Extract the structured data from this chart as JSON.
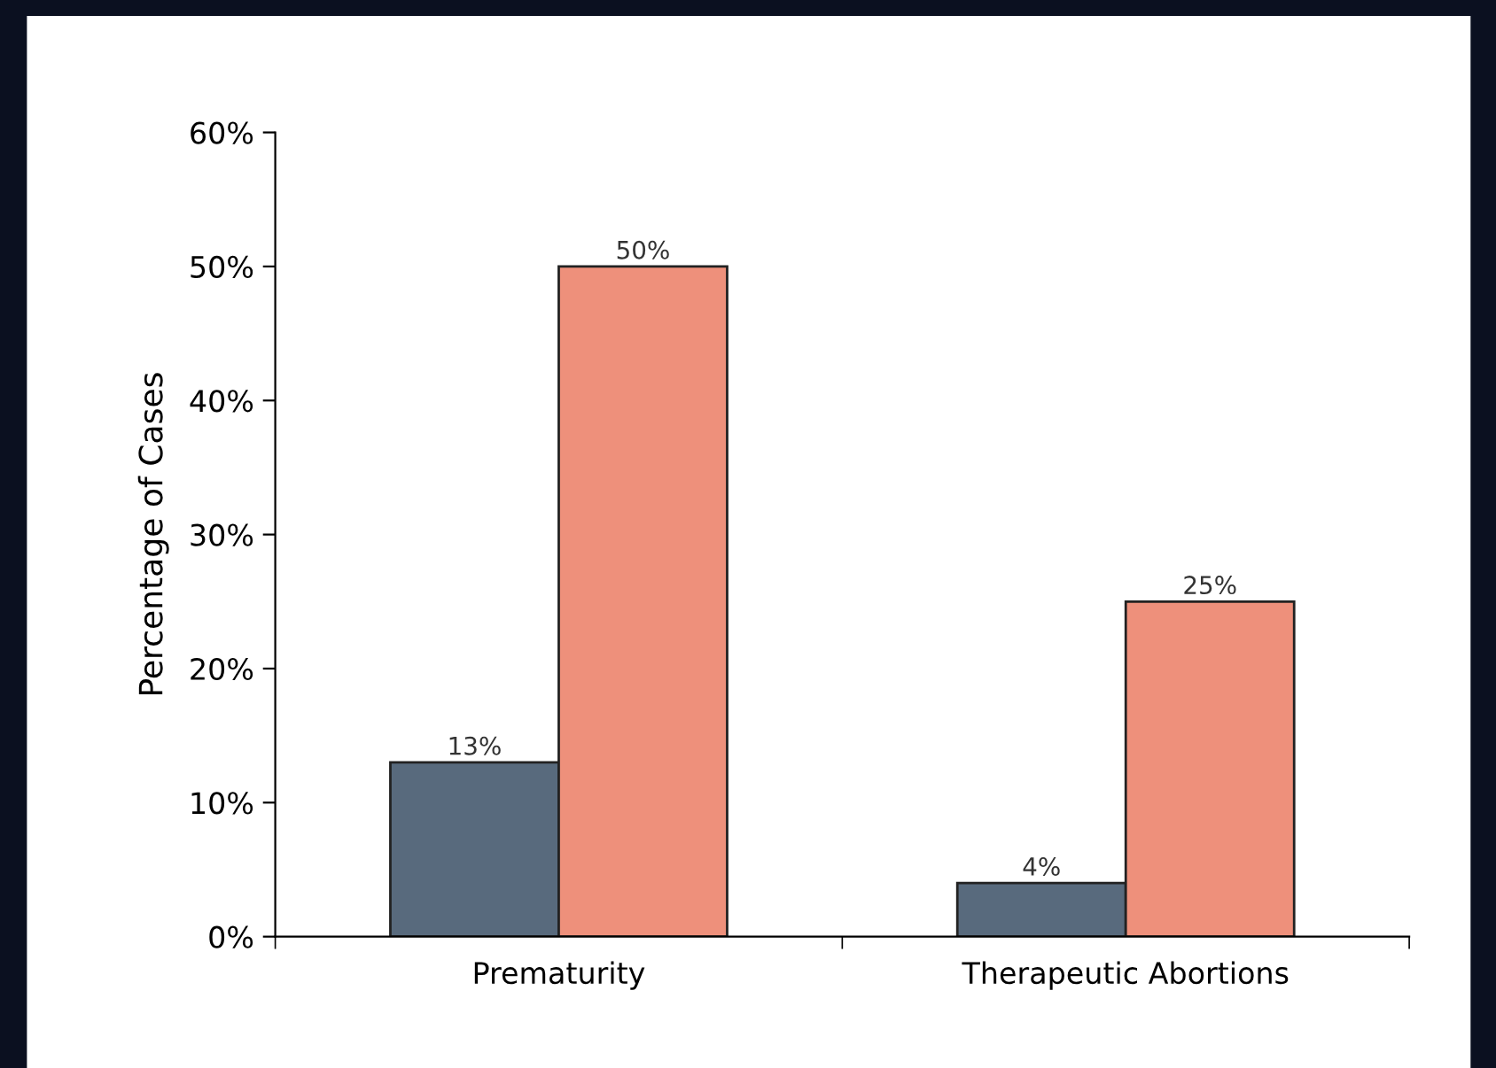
{
  "chart_data": {
    "type": "bar",
    "ylabel": "Percentage of Cases",
    "categories": [
      "Prematurity",
      "Therapeutic Abortions"
    ],
    "series": [
      {
        "color": "#586a7d",
        "values": [
          13,
          4
        ],
        "value_labels": [
          "13%",
          "4%"
        ]
      },
      {
        "color": "#ee907b",
        "values": [
          50,
          25
        ],
        "value_labels": [
          "50%",
          "25%"
        ]
      }
    ],
    "ylim": [
      0,
      60
    ],
    "yticks": [
      {
        "value": 0,
        "label": "0%"
      },
      {
        "value": 10,
        "label": "10%"
      },
      {
        "value": 20,
        "label": "20%"
      },
      {
        "value": 30,
        "label": "30%"
      },
      {
        "value": 40,
        "label": "40%"
      },
      {
        "value": 50,
        "label": "50%"
      },
      {
        "value": 60,
        "label": "60%"
      }
    ],
    "grid": false
  }
}
